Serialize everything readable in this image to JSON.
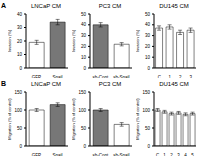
{
  "panels": [
    "A",
    "B"
  ],
  "chart_data": [
    {
      "type": "bar",
      "title": "LNCaP CM",
      "categories": [
        "GFP",
        "Snail GFP"
      ],
      "values": [
        19,
        34
      ],
      "errors": [
        1.5,
        2
      ],
      "colors": [
        "#ffffff",
        "#777777"
      ],
      "ylim": [
        0,
        40
      ],
      "yticks": [
        0,
        10,
        20,
        30,
        40
      ],
      "y_label": "Invasion (%)"
    },
    {
      "type": "bar",
      "title": "PC3 CM",
      "categories": [
        "sh-Cont",
        "sh-Snail"
      ],
      "values": [
        40,
        22
      ],
      "errors": [
        2,
        1.5
      ],
      "colors": [
        "#777777",
        "#ffffff"
      ],
      "ylim": [
        0,
        50
      ],
      "yticks": [
        0,
        10,
        20,
        30,
        40,
        50
      ],
      "y_label": "Invasion (%)"
    },
    {
      "type": "bar",
      "title": "DU145 CM",
      "categories": [
        "C",
        "1",
        "2",
        "3"
      ],
      "values": [
        37,
        38,
        33,
        35
      ],
      "errors": [
        2,
        2,
        2,
        2
      ],
      "colors": [
        "#ffffff",
        "#ffffff",
        "#ffffff",
        "#ffffff"
      ],
      "ylim": [
        0,
        50
      ],
      "yticks": [
        0,
        10,
        20,
        30,
        40,
        50
      ],
      "y_label": "Invasion (%)"
    },
    {
      "type": "bar",
      "title": "LNCaP CM",
      "categories": [
        "GFP",
        "Snail GFP"
      ],
      "values": [
        100,
        115
      ],
      "errors": [
        4,
        5
      ],
      "colors": [
        "#ffffff",
        "#777777"
      ],
      "ylim": [
        0,
        150
      ],
      "yticks": [
        0,
        50,
        100,
        150
      ],
      "y_label": "Migration (% of control)"
    },
    {
      "type": "bar",
      "title": "PC3 CM",
      "categories": [
        "sh-Cont",
        "sh-Snail"
      ],
      "values": [
        100,
        60
      ],
      "errors": [
        4,
        5
      ],
      "colors": [
        "#777777",
        "#ffffff"
      ],
      "ylim": [
        0,
        150
      ],
      "yticks": [
        0,
        50,
        100,
        150
      ],
      "y_label": "Migration (% of control)"
    },
    {
      "type": "bar",
      "title": "DU145 CM",
      "categories": [
        "C",
        "1",
        "2",
        "3",
        "4",
        "5"
      ],
      "values": [
        100,
        95,
        90,
        92,
        88,
        90
      ],
      "errors": [
        4,
        4,
        4,
        4,
        4,
        4
      ],
      "colors": [
        "#ffffff",
        "#ffffff",
        "#ffffff",
        "#ffffff",
        "#ffffff",
        "#ffffff"
      ],
      "ylim": [
        0,
        150
      ],
      "yticks": [
        0,
        50,
        100,
        150
      ],
      "y_label": "Migration (% of control)"
    }
  ]
}
